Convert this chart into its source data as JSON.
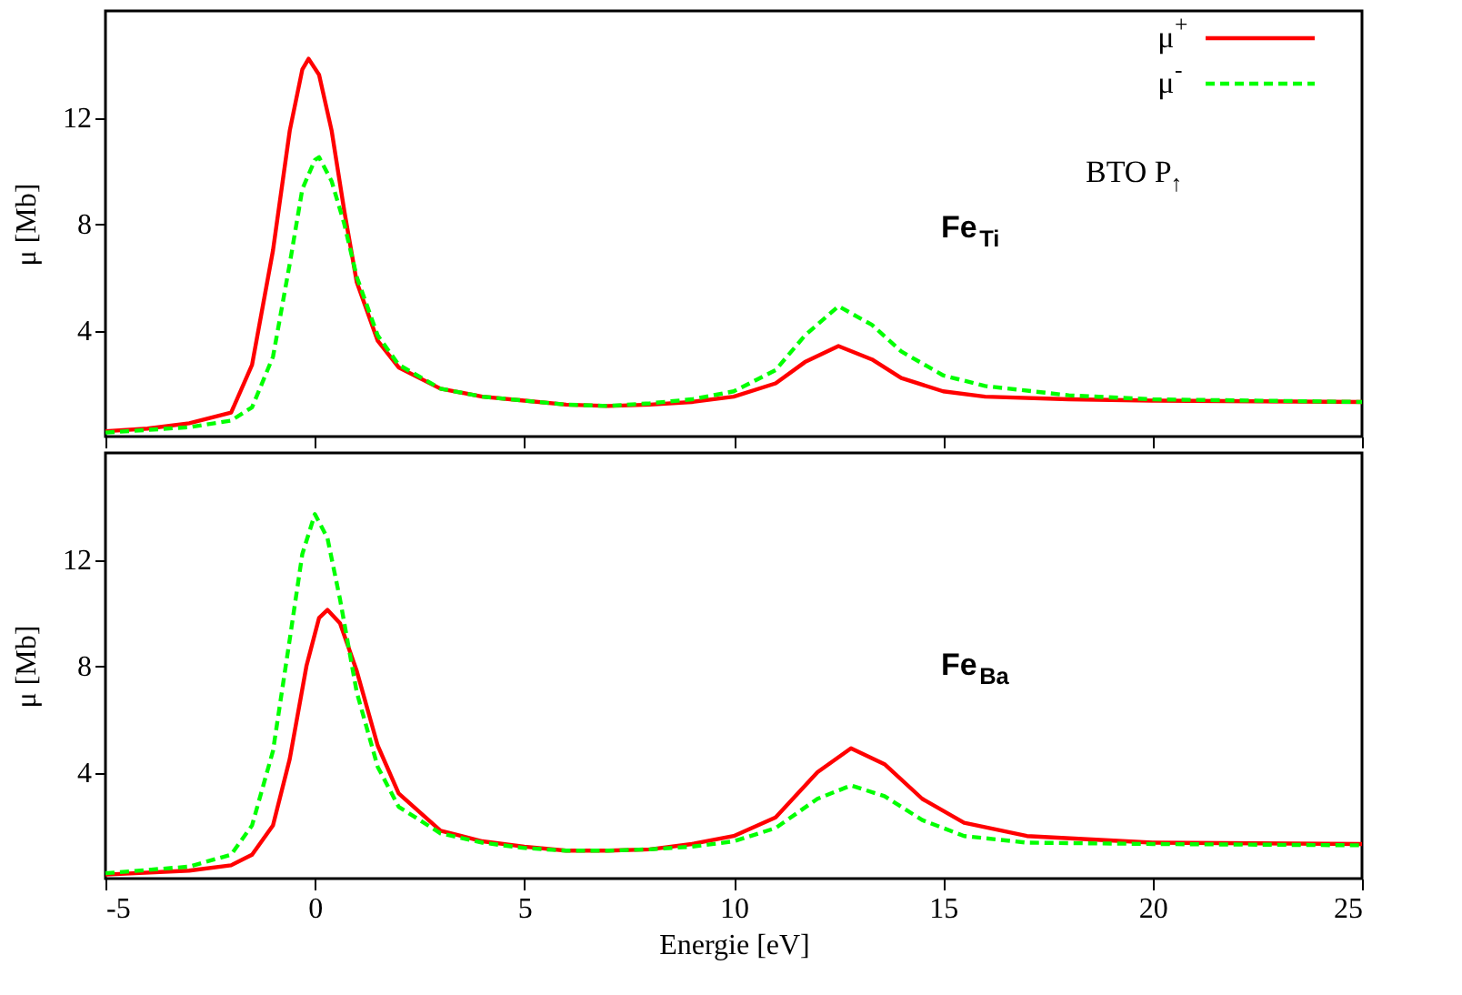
{
  "chart_data": [
    {
      "type": "line",
      "ylabel": "μ [Mb]",
      "xlim": [
        -5,
        25
      ],
      "xticks": [
        -5,
        0,
        5,
        10,
        15,
        20,
        25
      ],
      "ylim": [
        0,
        16
      ],
      "yticks": [
        4,
        8,
        12
      ],
      "tick_labels": "y",
      "grid": false,
      "legend": "top right",
      "marker": "none",
      "annotations": [
        "Fe$_{Ti}$",
        "BTO P$_{↑}$"
      ],
      "series": [
        {
          "name": "μ$^{+}$",
          "color": "#ff0000",
          "line_style": "solid",
          "x": [
            -5,
            -4,
            -3,
            -2,
            -1.5,
            -1,
            -0.6,
            -0.3,
            -0.15,
            0.1,
            0.4,
            0.7,
            1,
            1.5,
            2,
            3,
            4,
            5,
            6,
            7,
            8,
            9,
            10,
            11,
            11.7,
            12.5,
            13.3,
            14,
            15,
            16,
            18,
            20,
            25
          ],
          "values": [
            0.2,
            0.3,
            0.5,
            0.9,
            2.7,
            7.0,
            11.5,
            13.8,
            14.2,
            13.6,
            11.5,
            8.5,
            5.8,
            3.6,
            2.6,
            1.8,
            1.5,
            1.35,
            1.2,
            1.15,
            1.2,
            1.3,
            1.5,
            2.0,
            2.8,
            3.4,
            2.9,
            2.2,
            1.7,
            1.5,
            1.4,
            1.35,
            1.3
          ]
        },
        {
          "name": "μ$^{-}$",
          "color": "#00ff00",
          "line_style": "dashed",
          "x": [
            -5,
            -3,
            -2,
            -1.5,
            -1,
            -0.6,
            -0.3,
            0,
            0.1,
            0.4,
            0.7,
            1,
            1.5,
            2,
            3,
            4,
            5,
            6,
            7,
            8,
            9,
            10,
            11,
            11.7,
            12.5,
            13.3,
            14,
            15,
            16,
            18,
            20,
            25
          ],
          "values": [
            0.15,
            0.35,
            0.6,
            1.1,
            3.0,
            6.5,
            9.3,
            10.4,
            10.5,
            9.6,
            8.0,
            6.0,
            3.8,
            2.7,
            1.8,
            1.5,
            1.35,
            1.2,
            1.15,
            1.25,
            1.4,
            1.7,
            2.5,
            3.8,
            4.9,
            4.2,
            3.2,
            2.3,
            1.9,
            1.55,
            1.4,
            1.3
          ]
        }
      ]
    },
    {
      "type": "line",
      "xlabel": "Energie [eV]",
      "ylabel": "μ [Mb]",
      "xlim": [
        -5,
        25
      ],
      "xticks": [
        -5,
        0,
        5,
        10,
        15,
        20,
        25
      ],
      "ylim": [
        0,
        16
      ],
      "yticks": [
        4,
        8,
        12
      ],
      "grid": false,
      "marker": "none",
      "annotations": [
        "Fe$_{Ba}$"
      ],
      "series": [
        {
          "color": "#ff0000",
          "line_style": "solid",
          "x": [
            -5,
            -3,
            -2,
            -1.5,
            -1,
            -0.6,
            -0.2,
            0.1,
            0.3,
            0.6,
            1,
            1.5,
            2,
            3,
            4,
            5,
            6,
            7,
            8,
            9,
            10,
            11,
            12,
            12.8,
            13.6,
            14.5,
            15.5,
            17,
            20,
            25
          ],
          "values": [
            0.15,
            0.3,
            0.5,
            0.9,
            2.0,
            4.5,
            8.0,
            9.8,
            10.1,
            9.6,
            7.8,
            5.0,
            3.2,
            1.8,
            1.4,
            1.2,
            1.05,
            1.05,
            1.1,
            1.3,
            1.6,
            2.3,
            4.0,
            4.9,
            4.3,
            3.0,
            2.1,
            1.6,
            1.35,
            1.3
          ]
        },
        {
          "color": "#00ff00",
          "line_style": "dashed",
          "x": [
            -5,
            -3,
            -2,
            -1.5,
            -1,
            -0.6,
            -0.3,
            0,
            0.3,
            0.6,
            1,
            1.5,
            2,
            3,
            4,
            5,
            6,
            7,
            8,
            9,
            10,
            11,
            12,
            12.8,
            13.6,
            14.5,
            15.5,
            17,
            20,
            25
          ],
          "values": [
            0.2,
            0.45,
            0.9,
            2.0,
            4.8,
            9.0,
            12.2,
            13.7,
            12.8,
            10.5,
            7.0,
            4.2,
            2.7,
            1.7,
            1.35,
            1.15,
            1.05,
            1.05,
            1.1,
            1.2,
            1.4,
            1.9,
            3.0,
            3.5,
            3.1,
            2.2,
            1.6,
            1.35,
            1.3,
            1.25
          ]
        }
      ]
    }
  ]
}
